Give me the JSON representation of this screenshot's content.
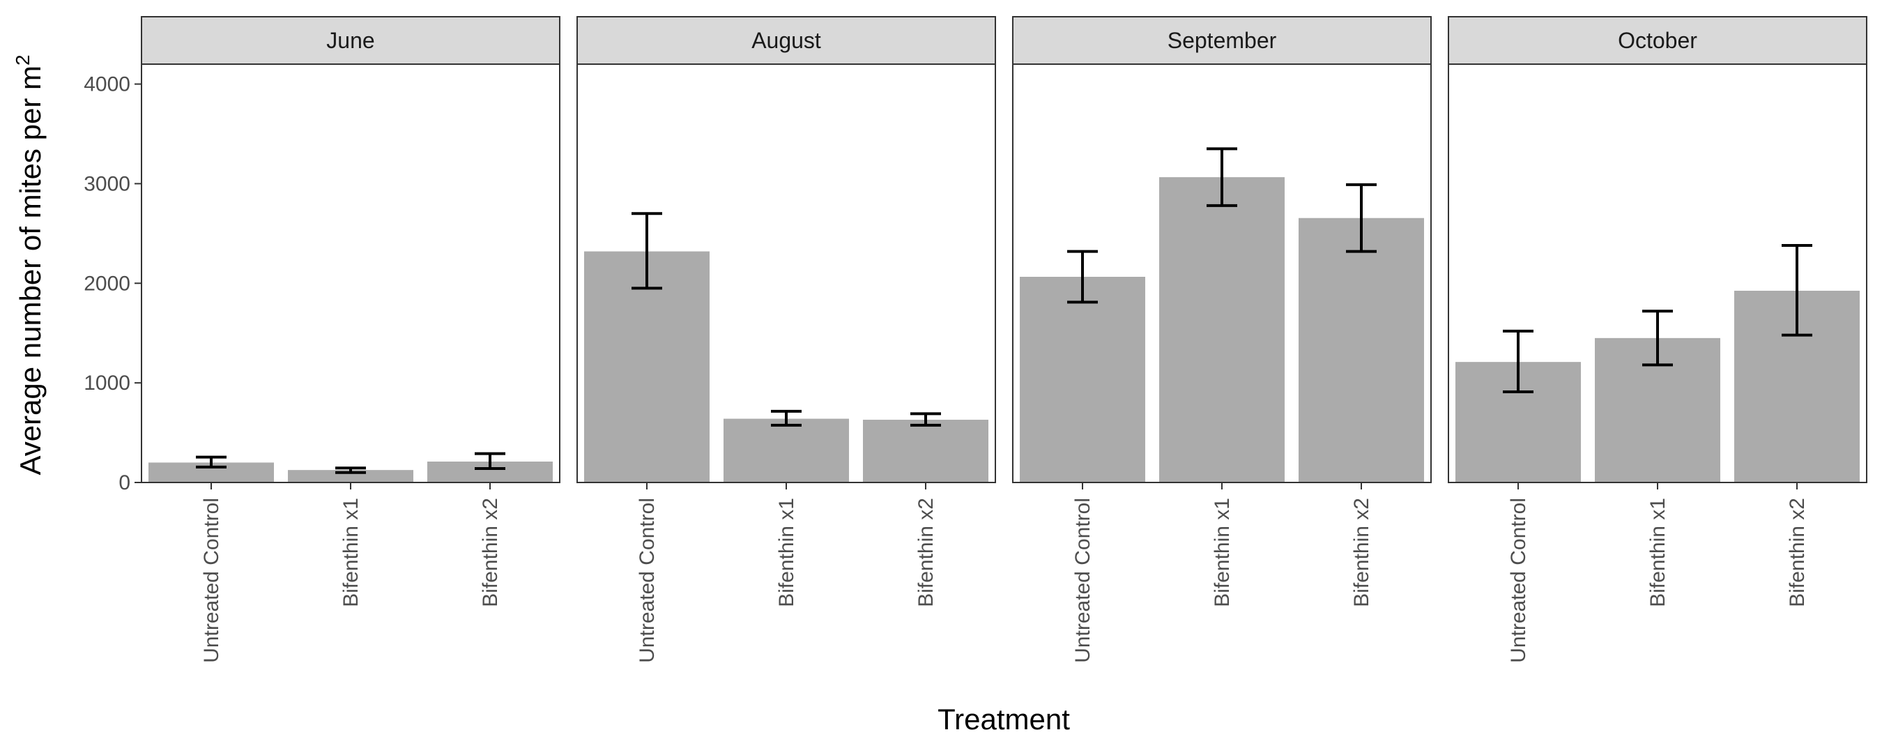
{
  "chart_data": {
    "type": "bar",
    "xlabel": "Treatment",
    "ylabel": "Average number of mites per m",
    "ylabel_superscript": "2",
    "ylim": [
      0,
      4200
    ],
    "yticks": [
      0,
      1000,
      2000,
      3000,
      4000
    ],
    "categories": [
      "Untreated Control",
      "Bifenthin x1",
      "Bifenthin x2"
    ],
    "panels": [
      {
        "name": "June",
        "values": [
          200,
          125,
          210
        ],
        "error_low": [
          155,
          100,
          140
        ],
        "error_high": [
          255,
          145,
          290
        ]
      },
      {
        "name": "August",
        "values": [
          2320,
          640,
          630
        ],
        "error_low": [
          1950,
          575,
          575
        ],
        "error_high": [
          2700,
          715,
          690
        ]
      },
      {
        "name": "September",
        "values": [
          2065,
          3065,
          2655
        ],
        "error_low": [
          1810,
          2780,
          2320
        ],
        "error_high": [
          2320,
          3350,
          2990
        ]
      },
      {
        "name": "October",
        "values": [
          1210,
          1450,
          1925
        ],
        "error_low": [
          910,
          1180,
          1480
        ],
        "error_high": [
          1520,
          1720,
          2380
        ]
      }
    ]
  }
}
